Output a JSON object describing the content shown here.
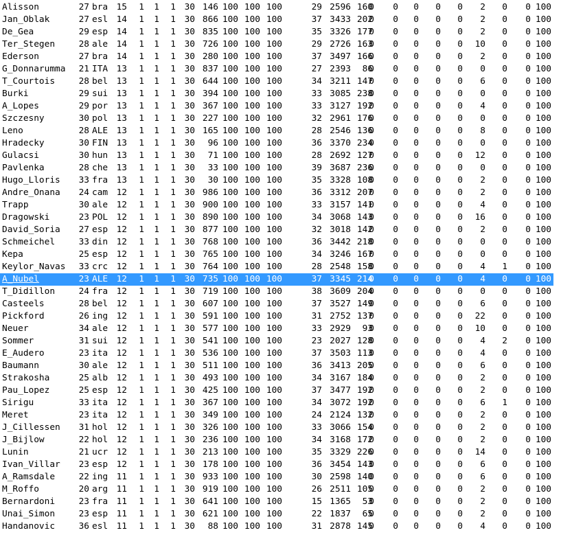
{
  "selected_index": 22,
  "colors": {
    "selection": "#3399ff",
    "selection_text": "#ffffff",
    "text": "#000000",
    "background": "#ffffff"
  },
  "rows": [
    [
      "Alisson",
      "27",
      "bra",
      "15",
      "1",
      "1",
      "1",
      "30",
      "146",
      "100",
      "100",
      "100",
      "29",
      "2596",
      "160",
      "0",
      "0",
      "0",
      "0",
      "0",
      "2",
      "0",
      "0",
      "100"
    ],
    [
      "Jan_Oblak",
      "27",
      "esl",
      "14",
      "1",
      "1",
      "1",
      "30",
      "866",
      "100",
      "100",
      "100",
      "37",
      "3433",
      "202",
      "0",
      "0",
      "0",
      "0",
      "0",
      "2",
      "0",
      "0",
      "100"
    ],
    [
      "De_Gea",
      "29",
      "esp",
      "14",
      "1",
      "1",
      "1",
      "30",
      "835",
      "100",
      "100",
      "100",
      "35",
      "3326",
      "177",
      "0",
      "0",
      "0",
      "0",
      "0",
      "2",
      "0",
      "0",
      "100"
    ],
    [
      "Ter_Stegen",
      "28",
      "ale",
      "14",
      "1",
      "1",
      "1",
      "30",
      "726",
      "100",
      "100",
      "100",
      "29",
      "2726",
      "163",
      "0",
      "0",
      "0",
      "0",
      "0",
      "10",
      "0",
      "0",
      "100"
    ],
    [
      "Ederson",
      "27",
      "bra",
      "14",
      "1",
      "1",
      "1",
      "30",
      "280",
      "100",
      "100",
      "100",
      "37",
      "3497",
      "166",
      "0",
      "0",
      "0",
      "0",
      "0",
      "2",
      "0",
      "0",
      "100"
    ],
    [
      "G_Donnarumma",
      "21",
      "ITA",
      "13",
      "1",
      "1",
      "1",
      "30",
      "837",
      "100",
      "100",
      "100",
      "27",
      "2393",
      "86",
      "0",
      "0",
      "0",
      "0",
      "0",
      "0",
      "0",
      "0",
      "100"
    ],
    [
      "T_Courtois",
      "28",
      "bel",
      "13",
      "1",
      "1",
      "1",
      "30",
      "644",
      "100",
      "100",
      "100",
      "34",
      "3211",
      "147",
      "0",
      "0",
      "0",
      "0",
      "0",
      "6",
      "0",
      "0",
      "100"
    ],
    [
      "Burki",
      "29",
      "sui",
      "13",
      "1",
      "1",
      "1",
      "30",
      "394",
      "100",
      "100",
      "100",
      "33",
      "3085",
      "238",
      "0",
      "0",
      "0",
      "0",
      "0",
      "0",
      "0",
      "0",
      "100"
    ],
    [
      "A_Lopes",
      "29",
      "por",
      "13",
      "1",
      "1",
      "1",
      "30",
      "367",
      "100",
      "100",
      "100",
      "33",
      "3127",
      "192",
      "0",
      "0",
      "0",
      "0",
      "0",
      "4",
      "0",
      "0",
      "100"
    ],
    [
      "Szczesny",
      "30",
      "pol",
      "13",
      "1",
      "1",
      "1",
      "30",
      "227",
      "100",
      "100",
      "100",
      "32",
      "2961",
      "176",
      "0",
      "0",
      "0",
      "0",
      "0",
      "0",
      "0",
      "0",
      "100"
    ],
    [
      "Leno",
      "28",
      "ALE",
      "13",
      "1",
      "1",
      "1",
      "30",
      "165",
      "100",
      "100",
      "100",
      "28",
      "2546",
      "136",
      "0",
      "0",
      "0",
      "0",
      "0",
      "8",
      "0",
      "0",
      "100"
    ],
    [
      "Hradecky",
      "30",
      "FIN",
      "13",
      "1",
      "1",
      "1",
      "30",
      "96",
      "100",
      "100",
      "100",
      "36",
      "3370",
      "234",
      "0",
      "0",
      "0",
      "0",
      "0",
      "0",
      "0",
      "0",
      "100"
    ],
    [
      "Gulacsi",
      "30",
      "hun",
      "13",
      "1",
      "1",
      "1",
      "30",
      "71",
      "100",
      "100",
      "100",
      "28",
      "2692",
      "127",
      "0",
      "0",
      "0",
      "0",
      "0",
      "12",
      "0",
      "0",
      "100"
    ],
    [
      "Pavlenka",
      "28",
      "che",
      "13",
      "1",
      "1",
      "1",
      "30",
      "33",
      "100",
      "100",
      "100",
      "39",
      "3687",
      "236",
      "0",
      "0",
      "0",
      "0",
      "0",
      "0",
      "0",
      "0",
      "100"
    ],
    [
      "Hugo_Lloris",
      "33",
      "fra",
      "13",
      "1",
      "1",
      "1",
      "30",
      "30",
      "100",
      "100",
      "100",
      "35",
      "3328",
      "108",
      "0",
      "0",
      "0",
      "0",
      "0",
      "2",
      "0",
      "0",
      "100"
    ],
    [
      "Andre_Onana",
      "24",
      "cam",
      "12",
      "1",
      "1",
      "1",
      "30",
      "986",
      "100",
      "100",
      "100",
      "36",
      "3312",
      "207",
      "0",
      "0",
      "0",
      "0",
      "0",
      "2",
      "0",
      "0",
      "100"
    ],
    [
      "Trapp",
      "30",
      "ale",
      "12",
      "1",
      "1",
      "1",
      "30",
      "900",
      "100",
      "100",
      "100",
      "33",
      "3157",
      "141",
      "0",
      "0",
      "0",
      "0",
      "0",
      "4",
      "0",
      "0",
      "100"
    ],
    [
      "Dragowski",
      "23",
      "POL",
      "12",
      "1",
      "1",
      "1",
      "30",
      "890",
      "100",
      "100",
      "100",
      "34",
      "3068",
      "143",
      "0",
      "0",
      "0",
      "0",
      "0",
      "16",
      "0",
      "0",
      "100"
    ],
    [
      "David_Soria",
      "27",
      "esp",
      "12",
      "1",
      "1",
      "1",
      "30",
      "877",
      "100",
      "100",
      "100",
      "32",
      "3018",
      "142",
      "0",
      "0",
      "0",
      "0",
      "0",
      "2",
      "0",
      "0",
      "100"
    ],
    [
      "Schmeichel",
      "33",
      "din",
      "12",
      "1",
      "1",
      "1",
      "30",
      "768",
      "100",
      "100",
      "100",
      "36",
      "3442",
      "218",
      "0",
      "0",
      "0",
      "0",
      "0",
      "0",
      "0",
      "0",
      "100"
    ],
    [
      "Kepa",
      "25",
      "esp",
      "12",
      "1",
      "1",
      "1",
      "30",
      "765",
      "100",
      "100",
      "100",
      "34",
      "3246",
      "167",
      "0",
      "0",
      "0",
      "0",
      "0",
      "0",
      "0",
      "0",
      "100"
    ],
    [
      "Keylor_Navas",
      "33",
      "crc",
      "12",
      "1",
      "1",
      "1",
      "30",
      "764",
      "100",
      "100",
      "100",
      "28",
      "2548",
      "158",
      "0",
      "0",
      "0",
      "0",
      "0",
      "4",
      "1",
      "0",
      "100"
    ],
    [
      "A_Nubel",
      "23",
      "ALE",
      "12",
      "1",
      "1",
      "1",
      "30",
      "735",
      "100",
      "100",
      "100",
      "37",
      "3345",
      "214",
      "0",
      "0",
      "0",
      "0",
      "0",
      "4",
      "0",
      "0",
      "100"
    ],
    [
      "T_Didillon",
      "24",
      "fra",
      "12",
      "1",
      "1",
      "1",
      "30",
      "719",
      "100",
      "100",
      "100",
      "38",
      "3609",
      "204",
      "0",
      "0",
      "0",
      "0",
      "0",
      "0",
      "0",
      "0",
      "100"
    ],
    [
      "Casteels",
      "28",
      "bel",
      "12",
      "1",
      "1",
      "1",
      "30",
      "607",
      "100",
      "100",
      "100",
      "37",
      "3527",
      "149",
      "0",
      "0",
      "0",
      "0",
      "0",
      "6",
      "0",
      "0",
      "100"
    ],
    [
      "Pickford",
      "26",
      "ing",
      "12",
      "1",
      "1",
      "1",
      "30",
      "591",
      "100",
      "100",
      "100",
      "31",
      "2752",
      "137",
      "0",
      "0",
      "0",
      "0",
      "0",
      "22",
      "0",
      "0",
      "100"
    ],
    [
      "Neuer",
      "34",
      "ale",
      "12",
      "1",
      "1",
      "1",
      "30",
      "577",
      "100",
      "100",
      "100",
      "33",
      "2929",
      "93",
      "0",
      "0",
      "0",
      "0",
      "0",
      "10",
      "0",
      "0",
      "100"
    ],
    [
      "Sommer",
      "31",
      "sui",
      "12",
      "1",
      "1",
      "1",
      "30",
      "541",
      "100",
      "100",
      "100",
      "23",
      "2027",
      "128",
      "0",
      "0",
      "0",
      "0",
      "0",
      "4",
      "2",
      "0",
      "100"
    ],
    [
      "E_Audero",
      "23",
      "ita",
      "12",
      "1",
      "1",
      "1",
      "30",
      "536",
      "100",
      "100",
      "100",
      "37",
      "3503",
      "113",
      "0",
      "0",
      "0",
      "0",
      "0",
      "4",
      "0",
      "0",
      "100"
    ],
    [
      "Baumann",
      "30",
      "ale",
      "12",
      "1",
      "1",
      "1",
      "30",
      "511",
      "100",
      "100",
      "100",
      "36",
      "3413",
      "205",
      "0",
      "0",
      "0",
      "0",
      "0",
      "6",
      "0",
      "0",
      "100"
    ],
    [
      "Strakosha",
      "25",
      "alb",
      "12",
      "1",
      "1",
      "1",
      "30",
      "493",
      "100",
      "100",
      "100",
      "34",
      "3167",
      "184",
      "0",
      "0",
      "0",
      "0",
      "0",
      "2",
      "0",
      "0",
      "100"
    ],
    [
      "Pau_Lopez",
      "25",
      "esp",
      "12",
      "1",
      "1",
      "1",
      "30",
      "425",
      "100",
      "100",
      "100",
      "37",
      "3477",
      "192",
      "0",
      "0",
      "0",
      "0",
      "0",
      "2",
      "0",
      "0",
      "100"
    ],
    [
      "Sirigu",
      "33",
      "ita",
      "12",
      "1",
      "1",
      "1",
      "30",
      "367",
      "100",
      "100",
      "100",
      "34",
      "3072",
      "192",
      "0",
      "0",
      "0",
      "0",
      "0",
      "6",
      "1",
      "0",
      "100"
    ],
    [
      "Meret",
      "23",
      "ita",
      "12",
      "1",
      "1",
      "1",
      "30",
      "349",
      "100",
      "100",
      "100",
      "24",
      "2124",
      "132",
      "0",
      "0",
      "0",
      "0",
      "0",
      "2",
      "0",
      "0",
      "100"
    ],
    [
      "J_Cillessen",
      "31",
      "hol",
      "12",
      "1",
      "1",
      "1",
      "30",
      "326",
      "100",
      "100",
      "100",
      "33",
      "3066",
      "154",
      "0",
      "0",
      "0",
      "0",
      "0",
      "2",
      "0",
      "0",
      "100"
    ],
    [
      "J_Bijlow",
      "22",
      "hol",
      "12",
      "1",
      "1",
      "1",
      "30",
      "236",
      "100",
      "100",
      "100",
      "34",
      "3168",
      "172",
      "0",
      "0",
      "0",
      "0",
      "0",
      "2",
      "0",
      "0",
      "100"
    ],
    [
      "Lunin",
      "21",
      "ucr",
      "12",
      "1",
      "1",
      "1",
      "30",
      "213",
      "100",
      "100",
      "100",
      "35",
      "3329",
      "226",
      "0",
      "0",
      "0",
      "0",
      "0",
      "14",
      "0",
      "0",
      "100"
    ],
    [
      "Ivan_Villar",
      "23",
      "esp",
      "12",
      "1",
      "1",
      "1",
      "30",
      "178",
      "100",
      "100",
      "100",
      "36",
      "3454",
      "143",
      "0",
      "0",
      "0",
      "0",
      "0",
      "6",
      "0",
      "0",
      "100"
    ],
    [
      "A_Ramsdale",
      "22",
      "ing",
      "11",
      "1",
      "1",
      "1",
      "30",
      "933",
      "100",
      "100",
      "100",
      "30",
      "2598",
      "140",
      "0",
      "0",
      "0",
      "0",
      "0",
      "6",
      "0",
      "0",
      "100"
    ],
    [
      "M_Roffo",
      "20",
      "arg",
      "11",
      "1",
      "1",
      "1",
      "30",
      "919",
      "100",
      "100",
      "100",
      "26",
      "2511",
      "105",
      "0",
      "0",
      "0",
      "0",
      "0",
      "2",
      "0",
      "0",
      "100"
    ],
    [
      "Bernardoni",
      "23",
      "fra",
      "11",
      "1",
      "1",
      "1",
      "30",
      "641",
      "100",
      "100",
      "100",
      "15",
      "1365",
      "53",
      "0",
      "0",
      "0",
      "0",
      "0",
      "2",
      "0",
      "0",
      "100"
    ],
    [
      "Unai_Simon",
      "23",
      "esp",
      "11",
      "1",
      "1",
      "1",
      "30",
      "621",
      "100",
      "100",
      "100",
      "22",
      "1837",
      "65",
      "0",
      "0",
      "0",
      "0",
      "0",
      "2",
      "0",
      "0",
      "100"
    ],
    [
      "Handanovic",
      "36",
      "esl",
      "11",
      "1",
      "1",
      "1",
      "30",
      "88",
      "100",
      "100",
      "100",
      "31",
      "2878",
      "145",
      "0",
      "0",
      "0",
      "0",
      "0",
      "4",
      "0",
      "0",
      "100"
    ]
  ]
}
